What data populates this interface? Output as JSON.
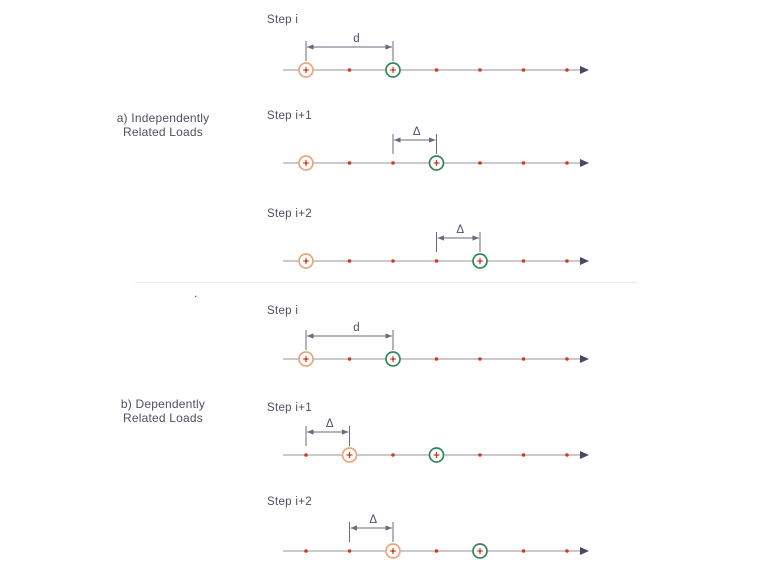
{
  "figure": {
    "sections": [
      {
        "id": "a",
        "label_lines": [
          "a) Independently",
          "Related Loads"
        ],
        "steps": [
          {
            "label": "Step i",
            "dim": {
              "label": "d",
              "from": 1,
              "to": 3
            },
            "orange_at": 1,
            "green_at": 3
          },
          {
            "label": "Step i+1",
            "dim": {
              "label": "Δ",
              "from": 3,
              "to": 4
            },
            "orange_at": 1,
            "green_at": 4
          },
          {
            "label": "Step i+2",
            "dim": {
              "label": "Δ",
              "from": 4,
              "to": 5
            },
            "orange_at": 1,
            "green_at": 5
          }
        ]
      },
      {
        "id": "b",
        "label_lines": [
          "b) Dependently",
          "Related Loads"
        ],
        "steps": [
          {
            "label": "Step i",
            "dim": {
              "label": "d",
              "from": 1,
              "to": 3
            },
            "orange_at": 1,
            "green_at": 3
          },
          {
            "label": "Step i+1",
            "dim": {
              "label": "Δ",
              "from": 1,
              "to": 2
            },
            "orange_at": 2,
            "green_at": 4
          },
          {
            "label": "Step i+2",
            "dim": {
              "label": "Δ",
              "from": 2,
              "to": 3
            },
            "orange_at": 3,
            "green_at": 5
          }
        ]
      }
    ],
    "axis": {
      "num_points": 7,
      "arrow_direction": "right"
    },
    "decorations": {
      "stray_period": "."
    },
    "colors": {
      "label_text": "#4d4f63",
      "axis_line": "#b9b9be",
      "point_dot": "#cf3a1e",
      "load_orange_ring": "#efa477",
      "load_green_ring": "#35855a",
      "load_cross": "#cf3a1e",
      "dim_line": "#68697c",
      "arrow_head": "#474a60",
      "divider": "#ececec"
    }
  }
}
